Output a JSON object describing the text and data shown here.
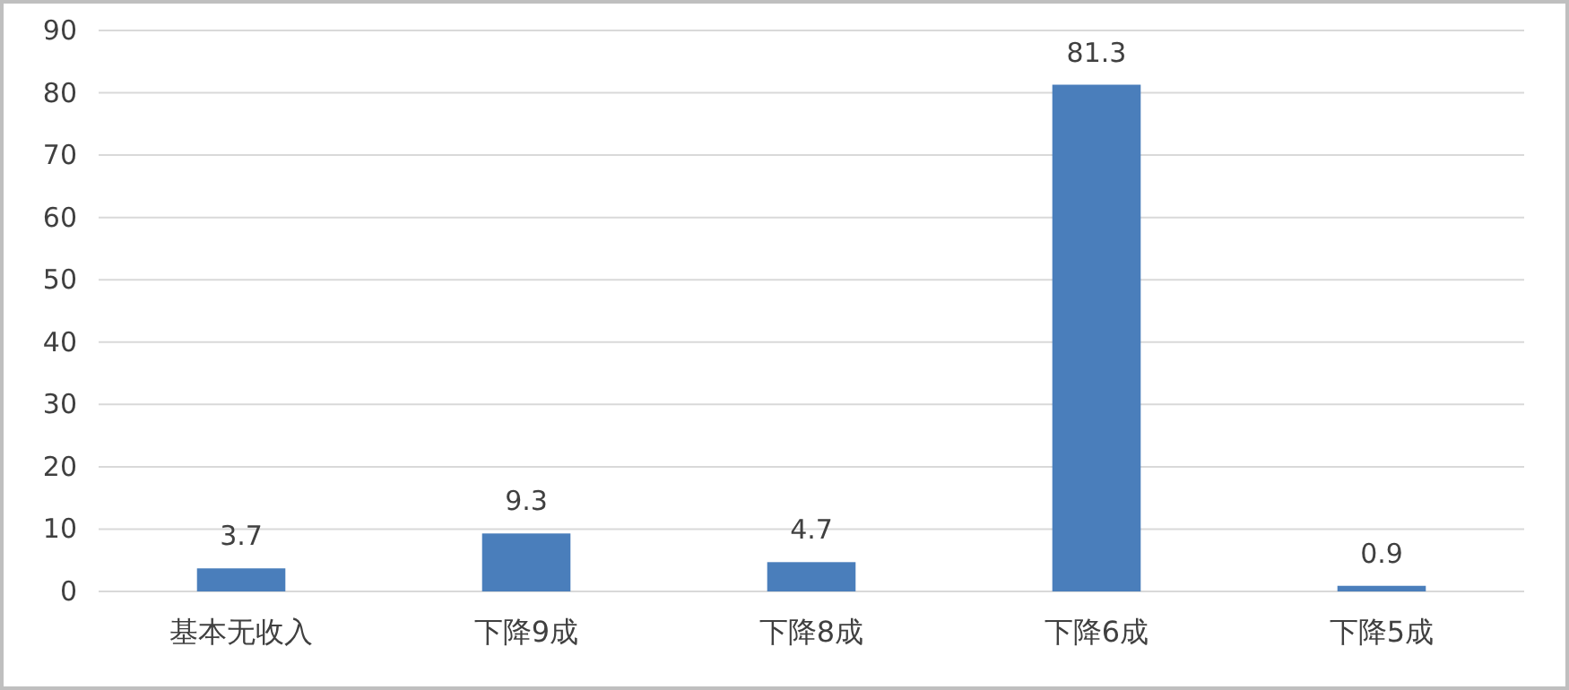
{
  "chart_data": {
    "type": "bar",
    "categories": [
      "基本无收入",
      "下降9成",
      "下降8成",
      "下降6成",
      "下降5成"
    ],
    "values": [
      3.7,
      9.3,
      4.7,
      81.3,
      0.9
    ],
    "color": "#4a7ebb",
    "ylim": [
      0,
      90
    ],
    "yticks": [
      0,
      10,
      20,
      30,
      40,
      50,
      60,
      70,
      80,
      90
    ],
    "grid": "y",
    "data_labels": true
  }
}
